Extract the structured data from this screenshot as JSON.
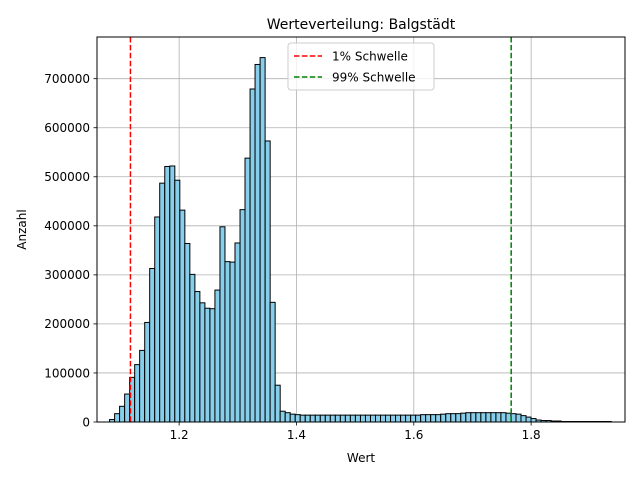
{
  "chart_data": {
    "type": "bar",
    "subtype": "histogram",
    "title": "Werteverteilung: Balgstädt",
    "xlabel": "Wert",
    "ylabel": "Anzahl",
    "xlim": [
      1.06,
      1.96
    ],
    "ylim": [
      0,
      785000
    ],
    "grid": true,
    "legend_position": "top-center",
    "x_ticks": [
      1.2,
      1.4,
      1.6,
      1.8
    ],
    "x_tick_labels": [
      "1.2",
      "1.4",
      "1.6",
      "1.8"
    ],
    "y_ticks": [
      0,
      100000,
      200000,
      300000,
      400000,
      500000,
      600000,
      700000
    ],
    "y_tick_labels": [
      "0",
      "100000",
      "200000",
      "300000",
      "400000",
      "500000",
      "600000",
      "700000"
    ],
    "bar_color": "#87ceeb",
    "bar_edge_color": "#000000",
    "bin_width": 0.00855,
    "bin_starts": [
      1.0814,
      1.09,
      1.0985,
      1.1071,
      1.1156,
      1.1242,
      1.1327,
      1.1413,
      1.1498,
      1.1584,
      1.1669,
      1.1755,
      1.1841,
      1.1926,
      1.2012,
      1.2097,
      1.2183,
      1.2268,
      1.2354,
      1.2439,
      1.2525,
      1.261,
      1.2696,
      1.2781,
      1.2867,
      1.2952,
      1.3038,
      1.3123,
      1.3209,
      1.3294,
      1.338,
      1.3466,
      1.3551,
      1.3637,
      1.3722,
      1.3808,
      1.3893,
      1.3979,
      1.4064,
      1.415,
      1.4235,
      1.4321,
      1.4406,
      1.4492,
      1.4577,
      1.4663,
      1.4748,
      1.4834,
      1.4919,
      1.5005,
      1.5091,
      1.5176,
      1.5262,
      1.5347,
      1.5433,
      1.5518,
      1.5604,
      1.5689,
      1.5775,
      1.586,
      1.5946,
      1.6031,
      1.6117,
      1.6202,
      1.6288,
      1.6373,
      1.6459,
      1.6545,
      1.663,
      1.6716,
      1.6801,
      1.6887,
      1.6972,
      1.7058,
      1.7143,
      1.7229,
      1.7314,
      1.74,
      1.7485,
      1.7571,
      1.7656,
      1.7742,
      1.7827,
      1.7913,
      1.7998,
      1.8084,
      1.817,
      1.8255,
      1.8341,
      1.8426,
      1.8512,
      1.8597,
      1.8683,
      1.8768,
      1.8854,
      1.8939,
      1.9025,
      1.911,
      1.9196,
      1.9281
    ],
    "values": [
      5000,
      17000,
      32000,
      57000,
      91000,
      117000,
      146000,
      203000,
      313000,
      418000,
      487000,
      521000,
      522000,
      493000,
      432000,
      364000,
      301000,
      266000,
      243000,
      232000,
      231000,
      269000,
      398000,
      327000,
      326000,
      365000,
      433000,
      538000,
      679000,
      729000,
      743000,
      573000,
      244000,
      75000,
      22000,
      19000,
      16000,
      15000,
      14000,
      14000,
      14000,
      14000,
      14000,
      14000,
      14000,
      14000,
      14000,
      14000,
      14000,
      14000,
      14000,
      14000,
      14000,
      14000,
      14000,
      14000,
      14000,
      14000,
      14000,
      14000,
      14000,
      14000,
      15000,
      15000,
      15000,
      15000,
      16000,
      17000,
      17000,
      17000,
      18000,
      19000,
      19000,
      19000,
      19000,
      19000,
      19000,
      19000,
      19000,
      18000,
      17000,
      16000,
      13000,
      10000,
      7000,
      4000,
      3000,
      3000,
      2000,
      2000,
      1000,
      1000,
      1000,
      1000,
      1000,
      1000,
      1000,
      1000,
      1000,
      1000
    ],
    "reference_lines": [
      {
        "name": "1% Schwelle",
        "x": 1.117,
        "color": "#ff0000"
      },
      {
        "name": "99% Schwelle",
        "x": 1.766,
        "color": "#008000"
      }
    ]
  }
}
